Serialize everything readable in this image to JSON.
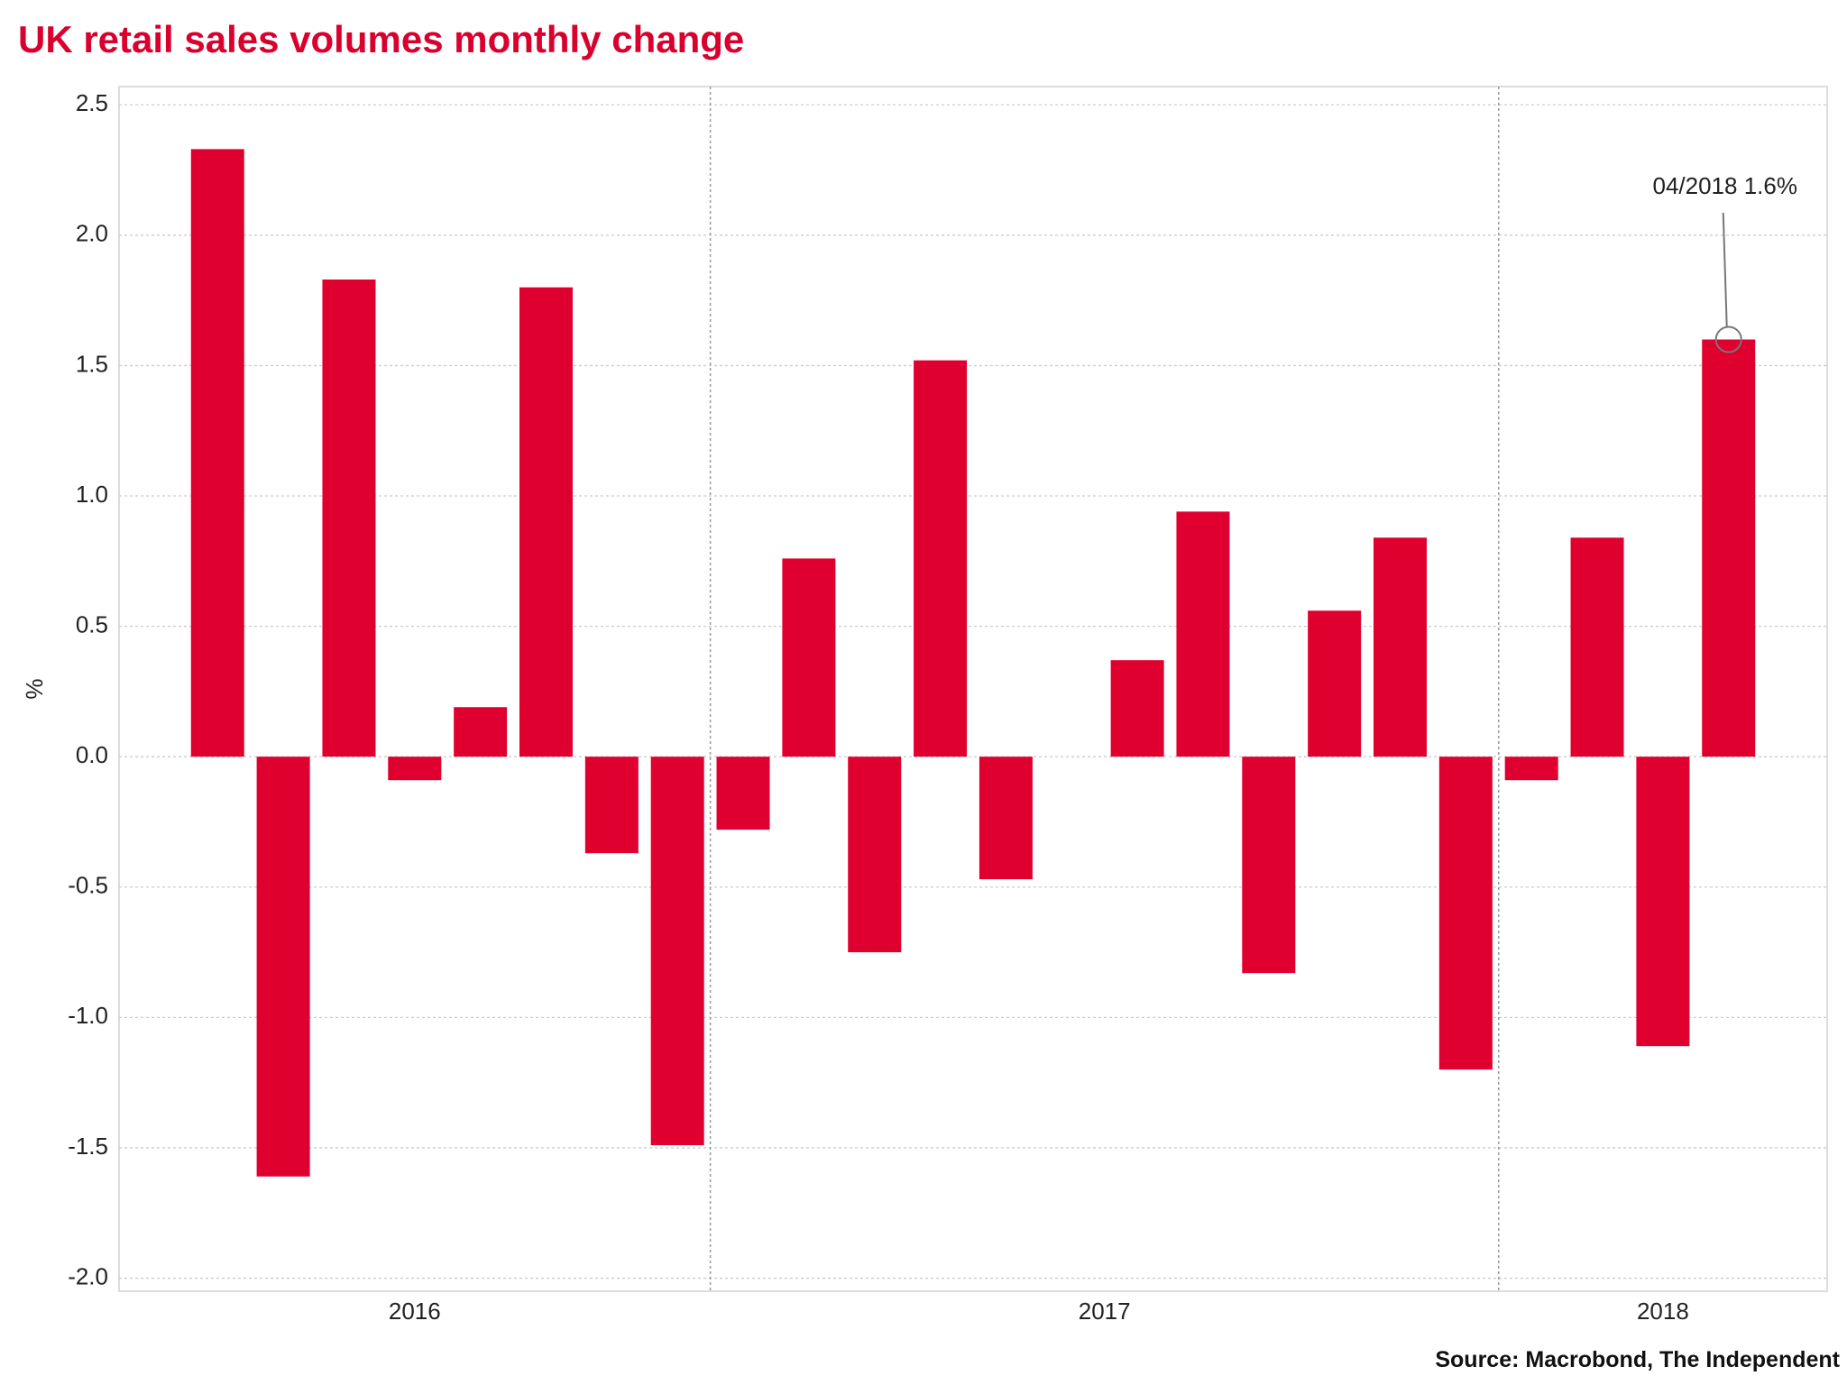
{
  "chart_data": {
    "type": "bar",
    "title": "UK retail sales volumes monthly change",
    "y_label": "%",
    "source": "Source: Macrobond, The Independent",
    "annotation": "04/2018 1.6%",
    "categories": [
      "2016",
      "2016",
      "2016",
      "2016",
      "2016",
      "2016",
      "2016",
      "2016",
      "2017",
      "2017",
      "2017",
      "2017",
      "2017",
      "2017",
      "2017",
      "2017",
      "2017",
      "2017",
      "2017",
      "2017",
      "2018",
      "2018",
      "2018",
      "2018"
    ],
    "values": [
      2.33,
      -1.61,
      1.83,
      -0.09,
      0.19,
      1.8,
      -0.37,
      -1.49,
      -0.28,
      0.76,
      -0.75,
      1.52,
      -0.47,
      0,
      0.37,
      0.94,
      -0.83,
      0.56,
      0.84,
      -1.2,
      -0.09,
      0.84,
      -1.11,
      1.6
    ],
    "color": "#e0002f",
    "ylim": [
      -2.05,
      2.57
    ],
    "yticks": [
      {
        "value": -2,
        "label": "-2.0"
      },
      -1.5,
      {
        "value": -1,
        "label": "-1.0"
      },
      -0.5,
      {
        "value": 0,
        "label": "0.0"
      },
      0.5,
      {
        "value": 1,
        "label": "1.0"
      },
      1.5,
      {
        "value": 2,
        "label": "2.0"
      },
      2.5
    ],
    "grid": true
  }
}
